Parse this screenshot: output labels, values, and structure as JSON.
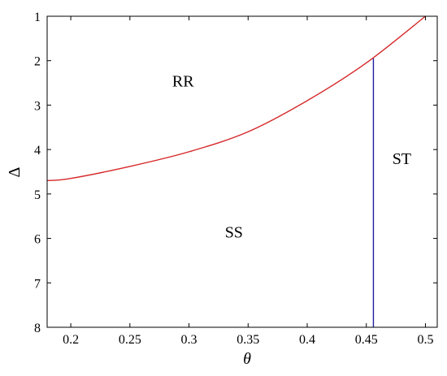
{
  "chart_data": {
    "type": "line",
    "xlabel": "θ",
    "ylabel": "Δ",
    "xlim": [
      0.18,
      0.51
    ],
    "ylim": [
      1,
      8
    ],
    "y_reversed": true,
    "grid": false,
    "x_ticks": [
      0.2,
      0.25,
      0.3,
      0.35,
      0.4,
      0.45,
      0.5
    ],
    "x_tick_labels": [
      "0.2",
      "0.25",
      "0.3",
      "0.35",
      "0.4",
      "0.45",
      "0.5"
    ],
    "y_ticks": [
      1,
      2,
      3,
      4,
      5,
      6,
      7,
      8
    ],
    "y_tick_labels": [
      "1",
      "2",
      "3",
      "4",
      "5",
      "6",
      "7",
      "8"
    ],
    "series": [
      {
        "color": "#d62728",
        "x": [
          0.18,
          0.2,
          0.25,
          0.3,
          0.35,
          0.4,
          0.45,
          0.5
        ],
        "y": [
          4.7,
          4.65,
          4.38,
          4.05,
          3.6,
          2.9,
          2.05,
          1.0
        ]
      },
      {
        "color": "#1f1fa0",
        "x": [
          0.456,
          0.456
        ],
        "y": [
          1.95,
          8
        ]
      }
    ],
    "region_labels": [
      {
        "text": "RR",
        "x": 0.295,
        "y": 2.45
      },
      {
        "text": "ST",
        "x": 0.48,
        "y": 4.2
      },
      {
        "text": "SS",
        "x": 0.338,
        "y": 5.85
      }
    ]
  }
}
